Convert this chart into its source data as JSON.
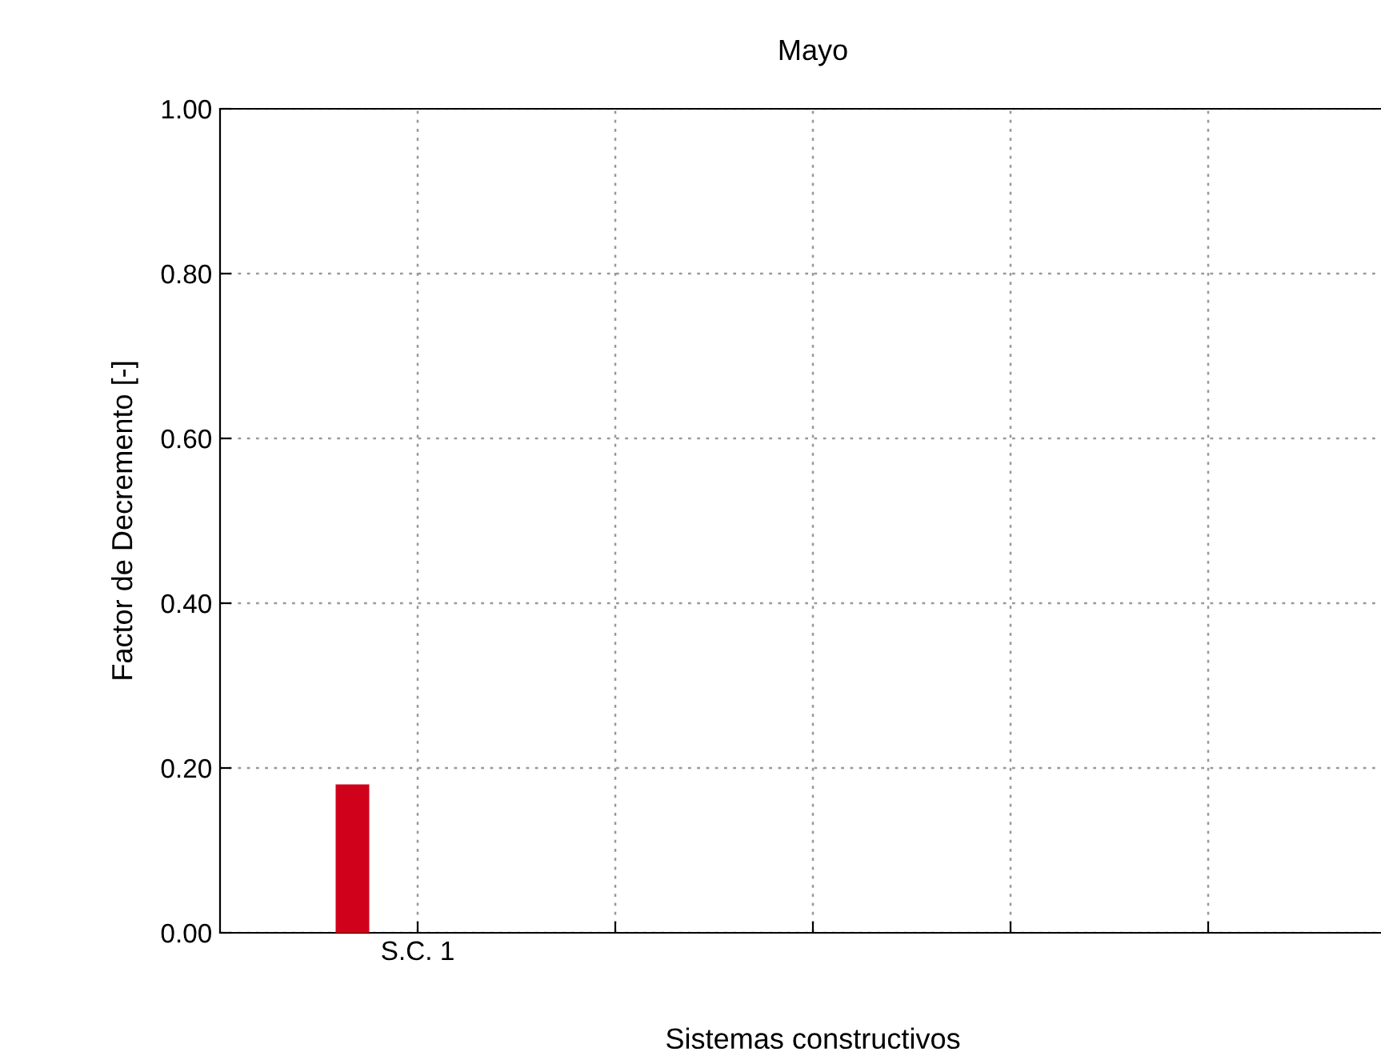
{
  "chart_data": {
    "type": "bar",
    "title": "Mayo",
    "xlabel": "Sistemas constructivos",
    "ylabel": "Factor de Decremento [-]",
    "categories": [
      "S.C. 1",
      null,
      null,
      null,
      null
    ],
    "values": [
      0.18,
      null,
      null,
      null,
      null
    ],
    "color": "#d0021b",
    "ylim": [
      0,
      1
    ],
    "yticks": [
      {
        "value": 0,
        "label": "0.00"
      },
      {
        "value": 0.2,
        "label": "0.20"
      },
      {
        "value": 0.4,
        "label": "0.40"
      },
      {
        "value": 0.6,
        "label": "0.60"
      },
      {
        "value": 0.8,
        "label": "0.80"
      },
      {
        "value": 1,
        "label": "1.00"
      }
    ],
    "grid": true
  }
}
